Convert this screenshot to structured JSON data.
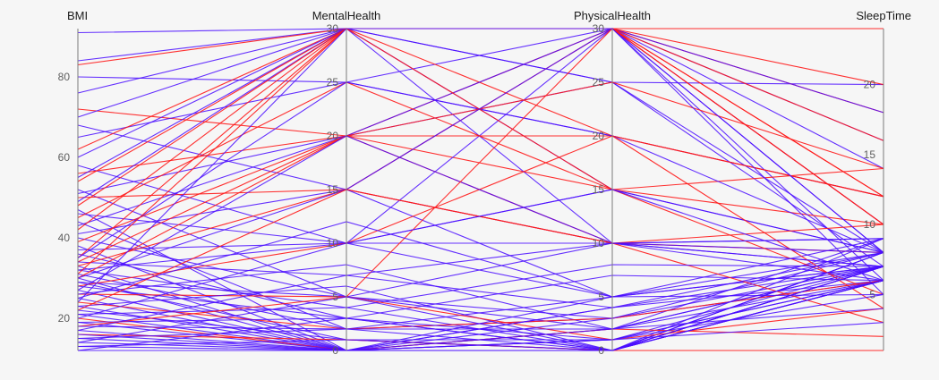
{
  "chart_data": {
    "type": "parallel-coordinates",
    "axes": [
      {
        "key": "BMI",
        "title": "BMI",
        "range": [
          12,
          92
        ],
        "ticks": [
          20,
          40,
          60,
          80
        ]
      },
      {
        "key": "MentalHealth",
        "title": "MentalHealth",
        "range": [
          0,
          30
        ],
        "ticks": [
          0,
          5,
          10,
          15,
          20,
          25,
          30
        ]
      },
      {
        "key": "PhysicalHealth",
        "title": "PhysicalHealth",
        "range": [
          0,
          30
        ],
        "ticks": [
          0,
          5,
          10,
          15,
          20,
          25,
          30
        ]
      },
      {
        "key": "SleepTime",
        "title": "SleepTime",
        "range": [
          1,
          24
        ],
        "ticks": [
          5,
          10,
          15,
          20
        ]
      }
    ],
    "colors": {
      "positive": "#ff1a1a",
      "negative": "#4a0dff",
      "background": "#f6f6f6"
    },
    "series": [
      {
        "group": "negative",
        "values": [
          91,
          30,
          30,
          10
        ]
      },
      {
        "group": "negative",
        "values": [
          84,
          30,
          25,
          20
        ]
      },
      {
        "group": "positive",
        "values": [
          83,
          30,
          30,
          24
        ]
      },
      {
        "group": "negative",
        "values": [
          80,
          25,
          20,
          12
        ]
      },
      {
        "group": "negative",
        "values": [
          76,
          30,
          15,
          8
        ]
      },
      {
        "group": "positive",
        "values": [
          72,
          20,
          30,
          18
        ]
      },
      {
        "group": "negative",
        "values": [
          70,
          30,
          30,
          14
        ]
      },
      {
        "group": "negative",
        "values": [
          68,
          15,
          10,
          7
        ]
      },
      {
        "group": "negative",
        "values": [
          65,
          25,
          30,
          16
        ]
      },
      {
        "group": "positive",
        "values": [
          62,
          30,
          20,
          12
        ]
      },
      {
        "group": "negative",
        "values": [
          60,
          30,
          30,
          6
        ]
      },
      {
        "group": "negative",
        "values": [
          58,
          10,
          5,
          8
        ]
      },
      {
        "group": "positive",
        "values": [
          56,
          20,
          15,
          10
        ]
      },
      {
        "group": "negative",
        "values": [
          55,
          30,
          25,
          7
        ]
      },
      {
        "group": "positive",
        "values": [
          54,
          30,
          30,
          12
        ]
      },
      {
        "group": "negative",
        "values": [
          52,
          5,
          2,
          9
        ]
      },
      {
        "group": "negative",
        "values": [
          51,
          20,
          30,
          18
        ]
      },
      {
        "group": "positive",
        "values": [
          50,
          15,
          10,
          8
        ]
      },
      {
        "group": "negative",
        "values": [
          49,
          30,
          10,
          6
        ]
      },
      {
        "group": "positive",
        "values": [
          48,
          30,
          30,
          20
        ]
      },
      {
        "group": "negative",
        "values": [
          47,
          0,
          0,
          7
        ]
      },
      {
        "group": "negative",
        "values": [
          46,
          10,
          30,
          8
        ]
      },
      {
        "group": "positive",
        "values": [
          45,
          25,
          15,
          14
        ]
      },
      {
        "group": "negative",
        "values": [
          44,
          2,
          3,
          6
        ]
      },
      {
        "group": "negative",
        "values": [
          43,
          20,
          25,
          8
        ]
      },
      {
        "group": "positive",
        "values": [
          42,
          30,
          30,
          10
        ]
      },
      {
        "group": "negative",
        "values": [
          41,
          15,
          5,
          7
        ]
      },
      {
        "group": "negative",
        "values": [
          40,
          5,
          10,
          9
        ]
      },
      {
        "group": "positive",
        "values": [
          39,
          20,
          20,
          12
        ]
      },
      {
        "group": "negative",
        "values": [
          38,
          0,
          1,
          6
        ]
      },
      {
        "group": "negative",
        "values": [
          37,
          10,
          15,
          8
        ]
      },
      {
        "group": "negative",
        "values": [
          36,
          3,
          0,
          7
        ]
      },
      {
        "group": "positive",
        "values": [
          35,
          30,
          30,
          16
        ]
      },
      {
        "group": "negative",
        "values": [
          35,
          25,
          20,
          8
        ]
      },
      {
        "group": "positive",
        "values": [
          34,
          20,
          10,
          10
        ]
      },
      {
        "group": "negative",
        "values": [
          34,
          7,
          4,
          6
        ]
      },
      {
        "group": "negative",
        "values": [
          33,
          0,
          2,
          7
        ]
      },
      {
        "group": "positive",
        "values": [
          33,
          15,
          30,
          12
        ]
      },
      {
        "group": "negative",
        "values": [
          32,
          10,
          10,
          8
        ]
      },
      {
        "group": "negative",
        "values": [
          32,
          4,
          0,
          7
        ]
      },
      {
        "group": "positive",
        "values": [
          31,
          30,
          15,
          5
        ]
      },
      {
        "group": "negative",
        "values": [
          31,
          2,
          5,
          9
        ]
      },
      {
        "group": "negative",
        "values": [
          30,
          0,
          0,
          6
        ]
      },
      {
        "group": "positive",
        "values": [
          30,
          20,
          25,
          14
        ]
      },
      {
        "group": "negative",
        "values": [
          30,
          15,
          30,
          8
        ]
      },
      {
        "group": "negative",
        "values": [
          29,
          5,
          3,
          7
        ]
      },
      {
        "group": "negative",
        "values": [
          29,
          1,
          0,
          8
        ]
      },
      {
        "group": "positive",
        "values": [
          28,
          10,
          20,
          4
        ]
      },
      {
        "group": "negative",
        "values": [
          28,
          3,
          7,
          6
        ]
      },
      {
        "group": "negative",
        "values": [
          27,
          0,
          1,
          7
        ]
      },
      {
        "group": "negative",
        "values": [
          27,
          20,
          10,
          9
        ]
      },
      {
        "group": "positive",
        "values": [
          26,
          5,
          30,
          10
        ]
      },
      {
        "group": "negative",
        "values": [
          26,
          8,
          2,
          6
        ]
      },
      {
        "group": "negative",
        "values": [
          25,
          0,
          0,
          8
        ]
      },
      {
        "group": "negative",
        "values": [
          25,
          12,
          5,
          7
        ]
      },
      {
        "group": "positive",
        "values": [
          24,
          2,
          3,
          6
        ]
      },
      {
        "group": "negative",
        "values": [
          24,
          30,
          30,
          5
        ]
      },
      {
        "group": "negative",
        "values": [
          23,
          0,
          4,
          7
        ]
      },
      {
        "group": "negative",
        "values": [
          23,
          6,
          0,
          9
        ]
      },
      {
        "group": "positive",
        "values": [
          22,
          15,
          10,
          3
        ]
      },
      {
        "group": "negative",
        "values": [
          22,
          1,
          1,
          6
        ]
      },
      {
        "group": "negative",
        "values": [
          21,
          4,
          8,
          7
        ]
      },
      {
        "group": "negative",
        "values": [
          21,
          0,
          0,
          8
        ]
      },
      {
        "group": "positive",
        "values": [
          20,
          0,
          2,
          2
        ]
      },
      {
        "group": "negative",
        "values": [
          20,
          10,
          15,
          6
        ]
      },
      {
        "group": "negative",
        "values": [
          19,
          3,
          0,
          7
        ]
      },
      {
        "group": "negative",
        "values": [
          19,
          0,
          5,
          5
        ]
      },
      {
        "group": "positive",
        "values": [
          18,
          5,
          1,
          4
        ]
      },
      {
        "group": "negative",
        "values": [
          18,
          2,
          0,
          6
        ]
      },
      {
        "group": "negative",
        "values": [
          17,
          0,
          3,
          8
        ]
      },
      {
        "group": "negative",
        "values": [
          17,
          7,
          10,
          7
        ]
      },
      {
        "group": "positive",
        "values": [
          16,
          1,
          0,
          1
        ]
      },
      {
        "group": "negative",
        "values": [
          16,
          0,
          0,
          6
        ]
      },
      {
        "group": "negative",
        "values": [
          15,
          2,
          2,
          7
        ]
      },
      {
        "group": "negative",
        "values": [
          15,
          0,
          1,
          5
        ]
      },
      {
        "group": "negative",
        "values": [
          14,
          5,
          0,
          6
        ]
      },
      {
        "group": "negative",
        "values": [
          14,
          0,
          4,
          8
        ]
      },
      {
        "group": "negative",
        "values": [
          13,
          1,
          0,
          7
        ]
      },
      {
        "group": "negative",
        "values": [
          13,
          0,
          2,
          4
        ]
      },
      {
        "group": "negative",
        "values": [
          12,
          0,
          0,
          6
        ]
      },
      {
        "group": "negative",
        "values": [
          12,
          3,
          1,
          3
        ]
      }
    ]
  }
}
